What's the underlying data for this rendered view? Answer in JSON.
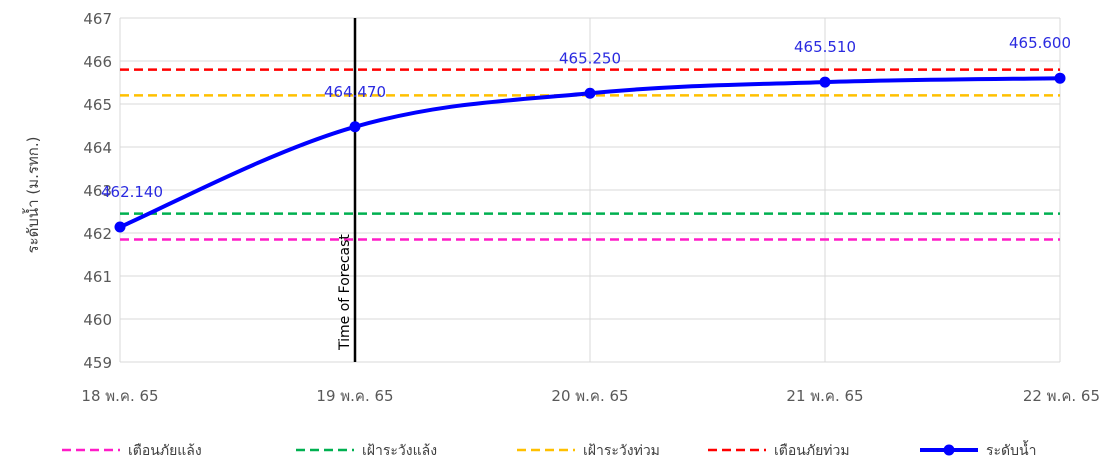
{
  "chart_data": {
    "type": "line",
    "title": "",
    "xlabel": "",
    "ylabel": "ระดับน้ำ (ม.รทก.)",
    "ylim": [
      459,
      467
    ],
    "yticks": [
      459,
      460,
      461,
      462,
      463,
      464,
      465,
      466,
      467
    ],
    "categories": [
      "18 พ.ค. 65",
      "19 พ.ค. 65",
      "20 พ.ค. 65",
      "21 พ.ค. 65",
      "22 พ.ค. 65"
    ],
    "grid": true,
    "legend_position": "bottom",
    "annotations": [
      {
        "type": "vertical-line",
        "x": "19 พ.ค. 65",
        "label": "Time of Forecast",
        "color": "#000000"
      }
    ],
    "thresholds": [
      {
        "name": "เตือนภัยแล้ง",
        "value": 461.85,
        "color": "#ff1cc8",
        "style": "dashed"
      },
      {
        "name": "เฝ้าระวังแล้ง",
        "value": 462.45,
        "color": "#00b050",
        "style": "dashed"
      },
      {
        "name": "เฝ้าระวังท่วม",
        "value": 465.2,
        "color": "#ffc000",
        "style": "dashed"
      },
      {
        "name": "เตือนภัยท่วม",
        "value": 465.8,
        "color": "#ff0000",
        "style": "dashed"
      }
    ],
    "series": [
      {
        "name": "ระดับน้ำ",
        "color": "#0000ff",
        "values": [
          462.14,
          464.47,
          465.25,
          465.51,
          465.6
        ],
        "labels": [
          "462.140",
          "464.470",
          "465.250",
          "465.510",
          "465.600"
        ]
      }
    ]
  }
}
